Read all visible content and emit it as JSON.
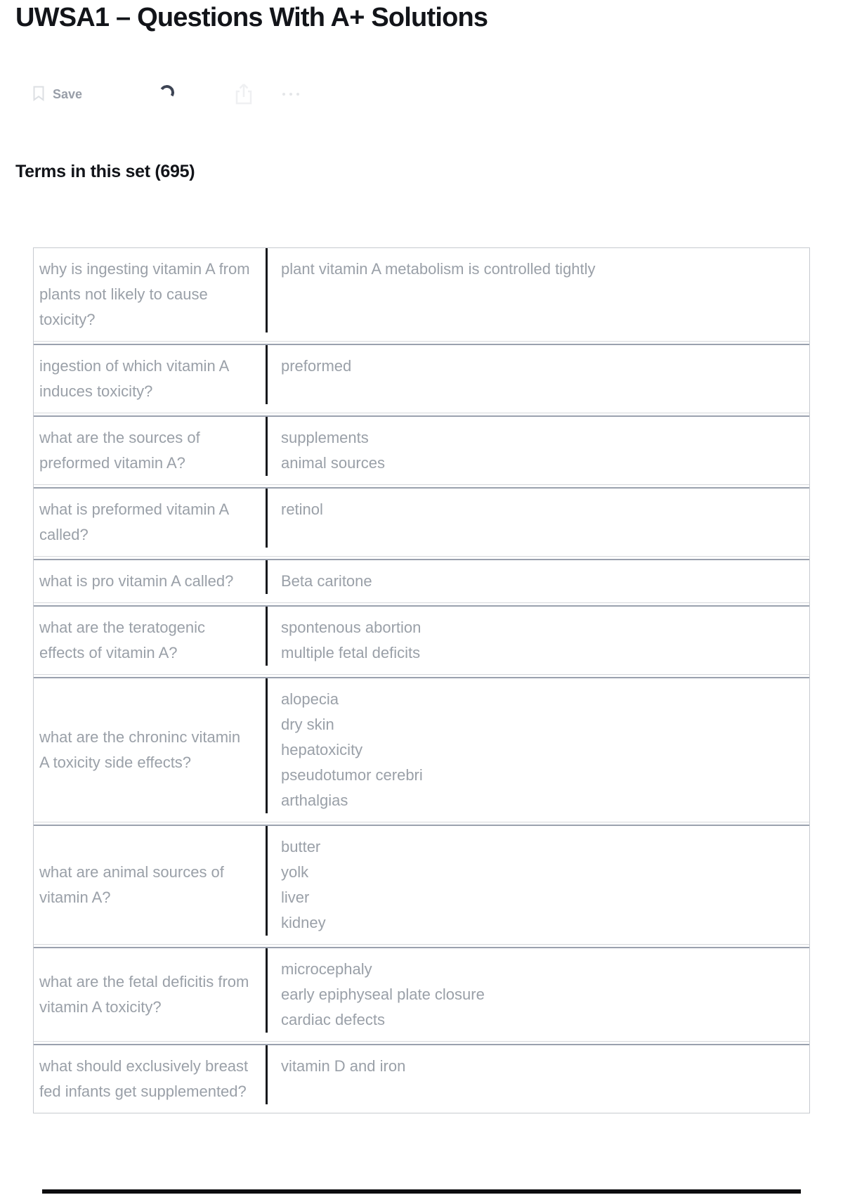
{
  "page": {
    "title": "UWSA1 – Questions With A+ Solutions"
  },
  "toolbar": {
    "save_label": "Save",
    "icons": {
      "save": "bookmark",
      "loading": "spinner-arc",
      "share": "share-box-up-arrow",
      "more": "ellipsis-dots"
    }
  },
  "section": {
    "heading": "Terms in this set (695)"
  },
  "terms": [
    {
      "term": "why is ingesting vitamin A from plants not likely to cause toxicity?",
      "definitions": [
        "plant vitamin A metabolism is controlled tightly"
      ]
    },
    {
      "term": "ingestion of which vitamin A induces toxicity?",
      "definitions": [
        "preformed"
      ]
    },
    {
      "term": "what are the sources of preformed vitamin A?",
      "definitions": [
        "supplements",
        "animal sources"
      ]
    },
    {
      "term": "what is preformed vitamin A called?",
      "definitions": [
        "retinol"
      ]
    },
    {
      "term": "what is pro vitamin A called?",
      "definitions": [
        "Beta caritone"
      ]
    },
    {
      "term": "what are the teratogenic effects of vitamin A?",
      "definitions": [
        "spontenous abortion",
        "multiple fetal deficits"
      ]
    },
    {
      "term": "what are the chroninc vitamin A toxicity side effects?",
      "definitions": [
        "alopecia",
        "dry skin",
        "hepatoxicity",
        "pseudotumor cerebri",
        "arthalgias"
      ]
    },
    {
      "term": "what are animal sources of vitamin A?",
      "definitions": [
        "butter",
        "yolk",
        "liver",
        "kidney"
      ]
    },
    {
      "term": "what are the fetal deficitis from vitamin A toxicity?",
      "definitions": [
        "microcephaly",
        "early epiphyseal plate closure",
        "cardiac defects"
      ]
    },
    {
      "term": "what should exclusively breast fed infants get supplemented?",
      "definitions": [
        "vitamin D and iron"
      ]
    }
  ],
  "colors": {
    "title_text": "#121419",
    "body_text": "#9aa0a8",
    "table_outer_border": "#c7cacf",
    "row_separator_dark": "#9aa1ae",
    "row_separator_light": "#d7d9dc",
    "column_divider": "#17191d",
    "spinner": "#3d4454",
    "faint_icon": "#dcdfe3",
    "bottom_bar": "#0d0d0f"
  }
}
